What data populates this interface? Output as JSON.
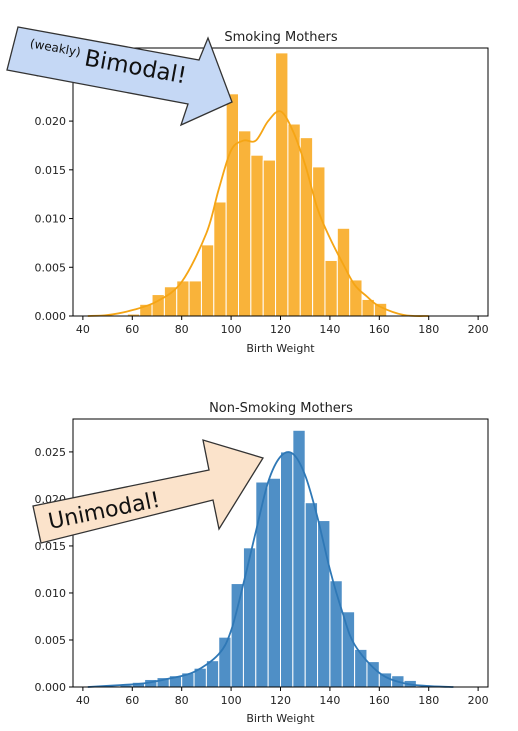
{
  "colors": {
    "smoking_bar": "#f9b33a",
    "smoking_bar_edge": "#ffffff",
    "smoking_kde": "#f5a515",
    "nonsmoking_bar": "#4f8fc6",
    "nonsmoking_kde": "#2f78b6",
    "bimodal_arrow_fill": "#c5d8f5",
    "unimodal_arrow_fill": "#fbe3cb",
    "arrow_stroke": "#333333"
  },
  "annotations": {
    "bimodal_prefix": "(weakly)",
    "bimodal_main": "Bimodal!",
    "unimodal": "Unimodal!"
  },
  "chart_data": [
    {
      "type": "bar",
      "title": "Smoking Mothers",
      "xlabel": "Birth Weight",
      "ylabel": "",
      "xlim": [
        36,
        204
      ],
      "ylim": [
        0,
        0.0275
      ],
      "xticks": [
        40,
        60,
        80,
        100,
        120,
        140,
        160,
        180,
        200
      ],
      "yticks": [
        "0.000",
        "0.005",
        "0.010",
        "0.015",
        "0.020",
        "0.025"
      ],
      "grid": false,
      "bin_edges": [
        58,
        63,
        68,
        73,
        78,
        83,
        88,
        93,
        98,
        103,
        108,
        113,
        118,
        123,
        128,
        133,
        138,
        143,
        148,
        153,
        158,
        163
      ],
      "values": [
        0.0002,
        0.0012,
        0.0022,
        0.003,
        0.0036,
        0.0036,
        0.0073,
        0.0117,
        0.0228,
        0.019,
        0.0165,
        0.016,
        0.027,
        0.0197,
        0.0183,
        0.0153,
        0.0057,
        0.009,
        0.0037,
        0.0017,
        0.0013
      ],
      "kde": {
        "x": [
          42,
          50,
          60,
          70,
          80,
          90,
          95,
          100,
          105,
          110,
          115,
          120,
          125,
          130,
          135,
          140,
          145,
          150,
          155,
          160,
          170,
          180
        ],
        "y": [
          0.0,
          0.0001,
          0.0006,
          0.0015,
          0.0035,
          0.0085,
          0.013,
          0.017,
          0.018,
          0.018,
          0.02,
          0.021,
          0.019,
          0.0155,
          0.011,
          0.008,
          0.0055,
          0.0032,
          0.002,
          0.001,
          0.0001,
          0.0
        ]
      }
    },
    {
      "type": "bar",
      "title": "Non-Smoking Mothers",
      "xlabel": "Birth Weight",
      "ylabel": "",
      "xlim": [
        36,
        204
      ],
      "ylim": [
        0,
        0.0285
      ],
      "xticks": [
        40,
        60,
        80,
        100,
        120,
        140,
        160,
        180,
        200
      ],
      "yticks": [
        "0.000",
        "0.005",
        "0.010",
        "0.015",
        "0.020",
        "0.025"
      ],
      "grid": false,
      "bin_edges": [
        55,
        60,
        65,
        70,
        75,
        80,
        85,
        90,
        95,
        100,
        105,
        110,
        115,
        120,
        125,
        130,
        135,
        140,
        145,
        150,
        155,
        160,
        165,
        170,
        175
      ],
      "values": [
        0.0002,
        0.0005,
        0.0008,
        0.001,
        0.0012,
        0.0015,
        0.002,
        0.0028,
        0.0053,
        0.011,
        0.0148,
        0.0218,
        0.0222,
        0.025,
        0.0273,
        0.0196,
        0.0177,
        0.0113,
        0.008,
        0.004,
        0.0027,
        0.0015,
        0.0012,
        0.0007
      ],
      "kde": {
        "x": [
          42,
          55,
          65,
          75,
          85,
          95,
          100,
          105,
          110,
          115,
          120,
          125,
          130,
          135,
          140,
          145,
          150,
          160,
          170,
          180,
          190
        ],
        "y": [
          0.0,
          0.0002,
          0.0004,
          0.0009,
          0.0016,
          0.0035,
          0.006,
          0.011,
          0.0165,
          0.0218,
          0.0245,
          0.0248,
          0.0225,
          0.018,
          0.0125,
          0.008,
          0.0045,
          0.0015,
          0.0004,
          0.0001,
          0.0
        ]
      }
    }
  ]
}
